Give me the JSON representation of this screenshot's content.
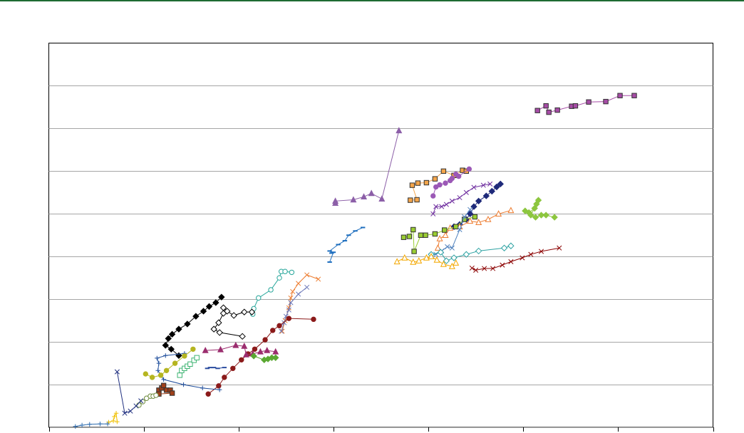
{
  "chart_data": {
    "type": "line",
    "xlim": [
      0,
      7
    ],
    "ylim": [
      0,
      9
    ],
    "xticks": [
      0,
      1,
      2,
      3,
      4,
      5,
      6,
      7
    ],
    "yticks": [
      0,
      1,
      2,
      3,
      4,
      5,
      6,
      7,
      8
    ],
    "grid": true,
    "series": [
      {
        "color": "#a64ca6",
        "marker": "square",
        "filled": true,
        "x": [
          5.15,
          5.24,
          5.27,
          5.36,
          5.51,
          5.55,
          5.69,
          5.87,
          6.02,
          6.17
        ],
        "y": [
          7.42,
          7.53,
          7.38,
          7.43,
          7.52,
          7.53,
          7.62,
          7.63,
          7.77,
          7.77
        ]
      },
      {
        "color": "#8c5fa8",
        "marker": "triangle",
        "filled": true,
        "x": [
          3.02,
          3.02,
          3.21,
          3.32,
          3.4,
          3.51,
          3.69
        ],
        "y": [
          5.25,
          5.3,
          5.33,
          5.4,
          5.48,
          5.35,
          6.95
        ]
      },
      {
        "color": "#f4a54a",
        "marker": "square",
        "filled": true,
        "x": [
          3.81,
          3.88,
          3.83,
          3.89,
          3.98,
          4.07,
          4.16,
          4.27,
          4.36,
          4.4
        ],
        "y": [
          5.32,
          5.33,
          5.67,
          5.72,
          5.73,
          5.82,
          6.0,
          5.9,
          6.02,
          6.0
        ]
      },
      {
        "color": "#9b59b6",
        "marker": "circle",
        "filled": true,
        "x": [
          4.05,
          4.08,
          4.12,
          4.18,
          4.23,
          4.25,
          4.29,
          4.32,
          4.43
        ],
        "y": [
          5.42,
          5.63,
          5.68,
          5.72,
          5.78,
          5.83,
          5.93,
          5.88,
          6.05
        ]
      },
      {
        "color": "#7030a0",
        "marker": "x",
        "filled": false,
        "x": [
          4.05,
          4.08,
          4.14,
          4.19,
          4.25,
          4.33,
          4.4,
          4.48,
          4.58,
          4.65
        ],
        "y": [
          5.0,
          5.17,
          5.17,
          5.22,
          5.3,
          5.38,
          5.5,
          5.62,
          5.67,
          5.7
        ]
      },
      {
        "color": "#1f2a7a",
        "marker": "diamond",
        "filled": true,
        "x": [
          4.27,
          4.33,
          4.4,
          4.44,
          4.48,
          4.53,
          4.61,
          4.67,
          4.72,
          4.76
        ],
        "y": [
          4.7,
          4.75,
          4.87,
          5.0,
          5.17,
          5.3,
          5.42,
          5.53,
          5.63,
          5.7
        ]
      },
      {
        "color": "#ed7d31",
        "marker": "triangle",
        "filled": false,
        "x": [
          4.1,
          4.12,
          4.18,
          4.23,
          4.33,
          4.44,
          4.53,
          4.63,
          4.74,
          4.87
        ],
        "y": [
          4.2,
          4.42,
          4.5,
          4.67,
          4.7,
          4.83,
          4.8,
          4.87,
          5.0,
          5.08
        ]
      },
      {
        "color": "#8dc63f",
        "marker": "diamond",
        "filled": true,
        "x": [
          5.02,
          5.06,
          5.12,
          5.14,
          5.16,
          5.08,
          5.13,
          5.19,
          5.24,
          5.33
        ],
        "y": [
          5.07,
          5.03,
          5.13,
          5.23,
          5.32,
          4.97,
          4.92,
          4.97,
          4.97,
          4.92
        ]
      },
      {
        "color": "#9acd32",
        "marker": "square",
        "filled": true,
        "x": [
          3.74,
          3.8,
          3.84,
          3.85,
          3.92,
          3.97,
          4.07,
          4.17,
          4.29,
          4.38,
          4.49
        ],
        "y": [
          4.45,
          4.47,
          4.63,
          4.12,
          4.5,
          4.5,
          4.53,
          4.62,
          4.7,
          4.87,
          4.93
        ]
      },
      {
        "color": "#4f81bd",
        "marker": "x",
        "filled": false,
        "x": [
          4.03,
          4.08,
          4.14,
          4.2,
          4.25,
          4.33,
          4.38,
          4.44
        ],
        "y": [
          4.03,
          4.05,
          4.13,
          4.23,
          4.2,
          4.63,
          4.93,
          5.1
        ]
      },
      {
        "color": "#2fa3a3",
        "marker": "diamond",
        "filled": false,
        "x": [
          4.03,
          4.13,
          4.19,
          4.27,
          4.4,
          4.53,
          4.8,
          4.87
        ],
        "y": [
          4.05,
          4.1,
          3.9,
          3.97,
          4.05,
          4.13,
          4.2,
          4.25
        ]
      },
      {
        "color": "#f4a800",
        "marker": "triangle",
        "filled": false,
        "x": [
          3.67,
          3.75,
          3.84,
          3.9,
          3.98,
          4.03,
          4.09,
          4.16,
          4.25,
          4.29
        ],
        "y": [
          3.88,
          3.97,
          3.87,
          3.9,
          3.97,
          4.0,
          3.92,
          3.82,
          3.77,
          3.85
        ]
      },
      {
        "color": "#8b0000",
        "marker": "x",
        "filled": false,
        "x": [
          4.46,
          4.5,
          4.59,
          4.68,
          4.78,
          4.87,
          4.99,
          5.08,
          5.19,
          5.38
        ],
        "y": [
          3.73,
          3.68,
          3.72,
          3.72,
          3.8,
          3.88,
          3.97,
          4.05,
          4.12,
          4.2
        ]
      },
      {
        "color": "#1f6fbf",
        "marker": "dash",
        "filled": true,
        "x": [
          2.96,
          3.0,
          2.98,
          2.96,
          3.05,
          3.12,
          3.16,
          3.23,
          3.31
        ],
        "y": [
          3.87,
          4.1,
          4.08,
          4.13,
          4.28,
          4.37,
          4.5,
          4.6,
          4.68
        ]
      },
      {
        "color": "#26a69a",
        "marker": "circle",
        "filled": false,
        "x": [
          2.15,
          2.16,
          2.21,
          2.34,
          2.43,
          2.45,
          2.49,
          2.56
        ],
        "y": [
          2.65,
          2.78,
          3.03,
          3.22,
          3.5,
          3.65,
          3.65,
          3.63
        ]
      },
      {
        "color": "#ed7d31",
        "marker": "x",
        "filled": false,
        "x": [
          2.46,
          2.49,
          2.53,
          2.55,
          2.57,
          2.63,
          2.72,
          2.84
        ],
        "y": [
          2.25,
          2.5,
          2.8,
          3.03,
          3.18,
          3.37,
          3.57,
          3.47
        ]
      },
      {
        "color": "#6b77b8",
        "marker": "x",
        "filled": false,
        "x": [
          2.45,
          2.48,
          2.5,
          2.53,
          2.55,
          2.63,
          2.72
        ],
        "y": [
          2.25,
          2.45,
          2.6,
          2.75,
          2.92,
          3.12,
          3.28
        ]
      },
      {
        "color": "#8b1a1a",
        "marker": "circle",
        "filled": true,
        "x": [
          1.68,
          1.79,
          1.85,
          1.94,
          2.03,
          2.1,
          2.17,
          2.28,
          2.36,
          2.43,
          2.53,
          2.79
        ],
        "y": [
          0.78,
          0.97,
          1.17,
          1.38,
          1.58,
          1.72,
          1.83,
          2.05,
          2.27,
          2.38,
          2.55,
          2.53
        ]
      },
      {
        "color": "#000000",
        "marker": "diamond",
        "filled": true,
        "x": [
          1.37,
          1.29,
          1.23,
          1.26,
          1.3,
          1.37,
          1.46,
          1.55,
          1.63,
          1.69,
          1.76,
          1.82
        ],
        "y": [
          1.68,
          1.83,
          1.92,
          2.08,
          2.18,
          2.3,
          2.42,
          2.6,
          2.72,
          2.83,
          2.92,
          3.05
        ]
      },
      {
        "color": "#000000",
        "marker": "diamond",
        "filled": false,
        "x": [
          2.04,
          1.8,
          1.74,
          1.79,
          1.84,
          1.84,
          1.88,
          1.95,
          2.06,
          2.14
        ],
        "y": [
          2.13,
          2.22,
          2.3,
          2.45,
          2.67,
          2.8,
          2.72,
          2.62,
          2.7,
          2.7
        ]
      },
      {
        "color": "#9b2d6e",
        "marker": "triangle",
        "filled": true,
        "x": [
          1.65,
          1.81,
          1.97,
          2.06,
          2.08,
          2.15,
          2.23,
          2.3,
          2.39
        ],
        "y": [
          1.8,
          1.82,
          1.92,
          1.9,
          1.7,
          1.72,
          1.77,
          1.8,
          1.77
        ]
      },
      {
        "color": "#5aa832",
        "marker": "diamond",
        "filled": true,
        "x": [
          2.16,
          2.27,
          2.31,
          2.35,
          2.39
        ],
        "y": [
          1.67,
          1.58,
          1.6,
          1.63,
          1.63
        ]
      },
      {
        "color": "#3cb371",
        "marker": "square",
        "filled": false,
        "x": [
          1.38,
          1.4,
          1.43,
          1.46,
          1.49,
          1.53,
          1.56
        ],
        "y": [
          1.22,
          1.33,
          1.38,
          1.43,
          1.48,
          1.57,
          1.63
        ]
      },
      {
        "color": "#1f4e9c",
        "marker": "plus",
        "filled": false,
        "x": [
          1.43,
          1.23,
          1.14,
          1.16,
          1.15,
          1.21,
          1.42,
          1.62,
          1.8
        ],
        "y": [
          1.73,
          1.68,
          1.62,
          1.5,
          1.33,
          1.12,
          1.0,
          0.92,
          0.88
        ]
      },
      {
        "color": "#b5b520",
        "marker": "circle",
        "filled": true,
        "x": [
          1.02,
          1.09,
          1.18,
          1.24,
          1.33,
          1.43,
          1.52
        ],
        "y": [
          1.25,
          1.17,
          1.22,
          1.33,
          1.5,
          1.67,
          1.83
        ]
      },
      {
        "color": "#2e4fa0",
        "marker": "dash",
        "filled": true,
        "x": [
          1.67,
          1.7,
          1.74,
          1.78,
          1.85
        ],
        "y": [
          1.38,
          1.4,
          1.4,
          1.38,
          1.4
        ]
      },
      {
        "color": "#a0401a",
        "marker": "square",
        "filled": true,
        "x": [
          1.16,
          1.19,
          1.21,
          1.24,
          1.28,
          1.3,
          1.16
        ],
        "y": [
          0.87,
          0.92,
          0.98,
          0.87,
          0.87,
          0.8,
          0.78
        ]
      },
      {
        "color": "#6e8b3d",
        "marker": "circle",
        "filled": false,
        "x": [
          0.95,
          0.99,
          1.03,
          1.07,
          1.1,
          1.13
        ],
        "y": [
          0.52,
          0.6,
          0.68,
          0.73,
          0.73,
          0.75
        ]
      },
      {
        "color": "#203080",
        "marker": "x",
        "filled": false,
        "x": [
          0.72,
          0.8,
          0.86,
          0.92,
          0.97
        ],
        "y": [
          1.3,
          0.33,
          0.38,
          0.5,
          0.62
        ]
      },
      {
        "color": "#f0c000",
        "marker": "plus",
        "filled": false,
        "x": [
          0.63,
          0.68,
          0.69,
          0.71,
          0.72
        ],
        "y": [
          0.12,
          0.15,
          0.25,
          0.33,
          0.13
        ]
      },
      {
        "color": "#2e6db0",
        "marker": "plus",
        "filled": false,
        "x": [
          0.28,
          0.35,
          0.43,
          0.54,
          0.62
        ],
        "y": [
          0.02,
          0.05,
          0.07,
          0.08,
          0.08
        ]
      }
    ]
  }
}
